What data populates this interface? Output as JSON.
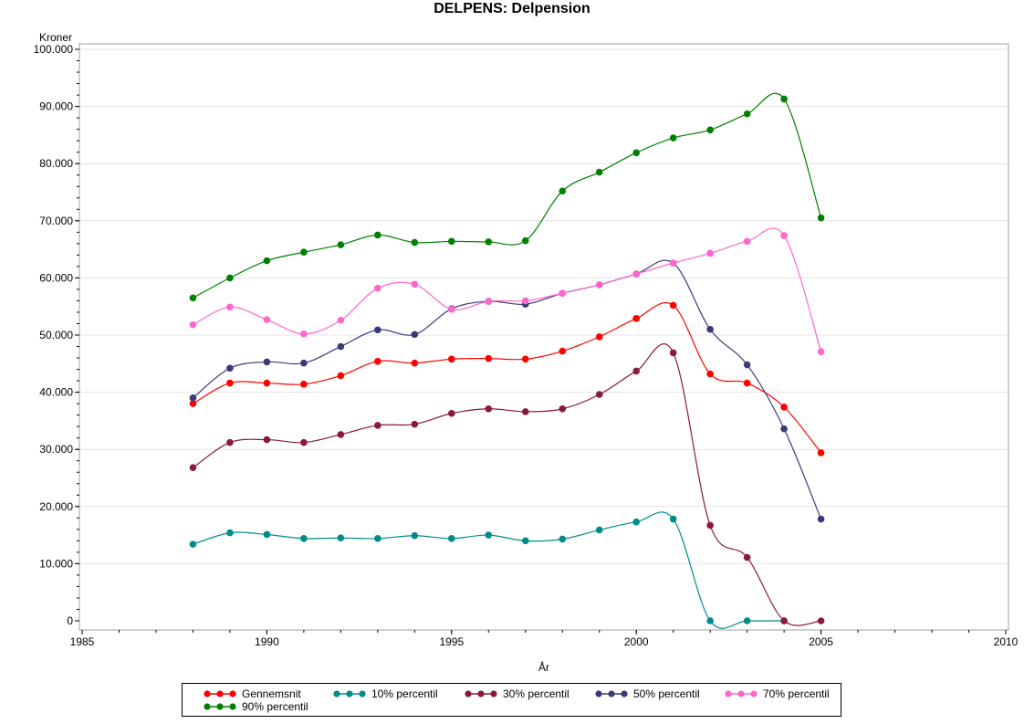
{
  "chart_data": {
    "type": "line",
    "title": "DELPENS: Delpension",
    "ylabel": "Kroner",
    "xlabel": "År",
    "xlim": [
      1985,
      2010
    ],
    "ylim": [
      0,
      100000
    ],
    "x_ticks": [
      "1985",
      "1990",
      "1995",
      "2000",
      "2005",
      "2010"
    ],
    "y_ticks": [
      "0",
      "10.000",
      "20.000",
      "30.000",
      "40.000",
      "50.000",
      "60.000",
      "70.000",
      "80.000",
      "90.000",
      "100.000"
    ],
    "grid": true,
    "legend_position": "bottom",
    "series": [
      {
        "name": "Gennemsnit",
        "color": "#ff0000",
        "x": [
          1988,
          1989,
          1990,
          1991,
          1992,
          1993,
          1994,
          1995,
          1996,
          1997,
          1998,
          1999,
          2000,
          2001,
          2002,
          2003,
          2004,
          2005
        ],
        "y": [
          38000,
          41600,
          41600,
          41400,
          42900,
          45400,
          45100,
          45800,
          45900,
          45800,
          47200,
          49700,
          52900,
          55200,
          43200,
          41600,
          37400,
          29400
        ]
      },
      {
        "name": "10% percentil",
        "color": "#008b8b",
        "x": [
          1988,
          1989,
          1990,
          1991,
          1992,
          1993,
          1994,
          1995,
          1996,
          1997,
          1998,
          1999,
          2000,
          2001,
          2002,
          2003,
          2004
        ],
        "y": [
          13400,
          15400,
          15100,
          14400,
          14500,
          14400,
          14900,
          14400,
          15000,
          14000,
          14300,
          15900,
          17300,
          17800,
          0,
          0,
          0
        ]
      },
      {
        "name": "30% percentil",
        "color": "#8b1a3a",
        "x": [
          1988,
          1989,
          1990,
          1991,
          1992,
          1993,
          1994,
          1995,
          1996,
          1997,
          1998,
          1999,
          2000,
          2001,
          2002,
          2003,
          2004,
          2005
        ],
        "y": [
          26800,
          31200,
          31700,
          31200,
          32600,
          34200,
          34400,
          36300,
          37100,
          36600,
          37100,
          39600,
          43700,
          46900,
          16700,
          11100,
          0,
          0
        ]
      },
      {
        "name": "50% percentil",
        "color": "#3a3a7a",
        "x": [
          1988,
          1989,
          1990,
          1991,
          1992,
          1993,
          1994,
          1995,
          1996,
          1997,
          1998,
          1999,
          2000,
          2001,
          2002,
          2003,
          2004,
          2005
        ],
        "y": [
          39000,
          44200,
          45300,
          45100,
          48000,
          50900,
          50100,
          54600,
          55900,
          55400,
          57300,
          58800,
          60700,
          62600,
          51000,
          44800,
          33600,
          17800
        ]
      },
      {
        "name": "70% percentil",
        "color": "#ff66cc",
        "x": [
          1988,
          1989,
          1990,
          1991,
          1992,
          1993,
          1994,
          1995,
          1996,
          1997,
          1998,
          1999,
          2000,
          2001,
          2002,
          2003,
          2004,
          2005
        ],
        "y": [
          51800,
          54900,
          52700,
          50200,
          52600,
          58200,
          58900,
          54500,
          55900,
          56000,
          57300,
          58800,
          60700,
          62600,
          64300,
          66400,
          67400,
          47100
        ]
      },
      {
        "name": "90% percentil",
        "color": "#008000",
        "x": [
          1988,
          1989,
          1990,
          1991,
          1992,
          1993,
          1994,
          1995,
          1996,
          1997,
          1998,
          1999,
          2000,
          2001,
          2002,
          2003,
          2004,
          2005
        ],
        "y": [
          56500,
          60000,
          63000,
          64500,
          65800,
          67500,
          66200,
          66400,
          66300,
          66500,
          75200,
          78500,
          81900,
          84500,
          85900,
          88700,
          91300,
          70500
        ]
      }
    ]
  }
}
